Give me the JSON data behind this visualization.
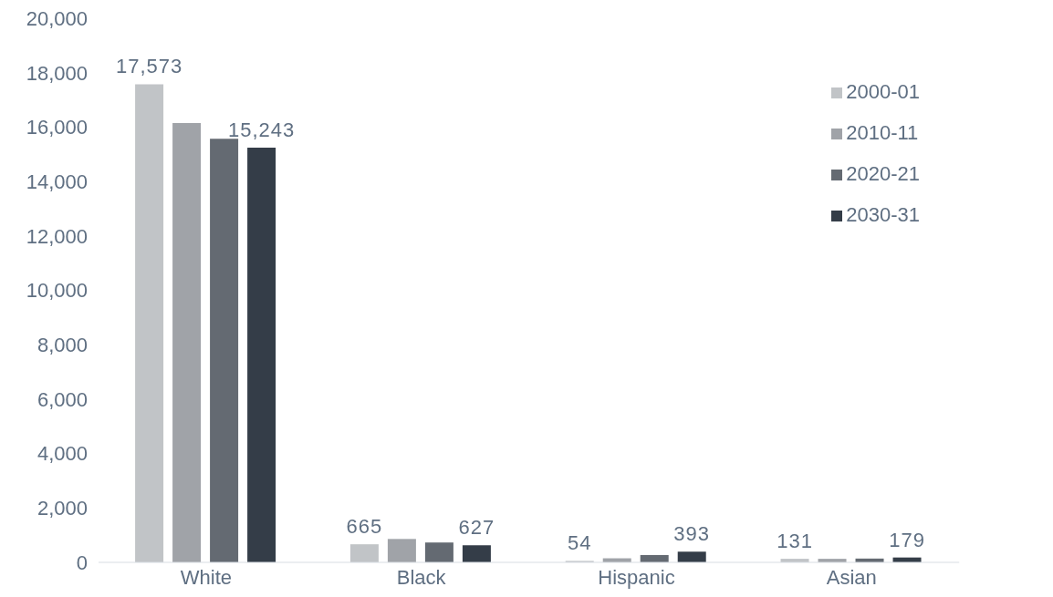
{
  "chart_data": {
    "type": "bar",
    "categories": [
      "White",
      "Black",
      "Hispanic",
      "Asian"
    ],
    "series": [
      {
        "name": "2000-01",
        "color": "#c1c4c7",
        "values": [
          17573,
          665,
          54,
          131
        ],
        "value_labels": [
          "17,573",
          "665",
          "54",
          "131"
        ]
      },
      {
        "name": "2010-11",
        "color": "#a0a3a8",
        "values": [
          16150,
          860,
          150,
          130
        ]
      },
      {
        "name": "2020-21",
        "color": "#646a72",
        "values": [
          15570,
          730,
          270,
          140
        ]
      },
      {
        "name": "2030-31",
        "color": "#343d48",
        "values": [
          15243,
          627,
          393,
          179
        ],
        "value_labels": [
          "15,243",
          "627",
          "393",
          "179"
        ]
      }
    ],
    "ylim": [
      0,
      20000
    ],
    "yticks": [
      0,
      {
        "value": 2000,
        "label": "2,000"
      },
      {
        "value": 4000,
        "label": "4,000"
      },
      {
        "value": 6000,
        "label": "6,000"
      },
      {
        "value": 8000,
        "label": "8,000"
      },
      {
        "value": 10000,
        "label": "10,000"
      },
      {
        "value": 12000,
        "label": "12,000"
      },
      {
        "value": 14000,
        "label": "14,000"
      },
      {
        "value": 16000,
        "label": "16,000"
      },
      {
        "value": 18000,
        "label": "18,000"
      },
      {
        "value": 20000,
        "label": "20,000"
      }
    ],
    "grid": false,
    "legend": "top right"
  }
}
